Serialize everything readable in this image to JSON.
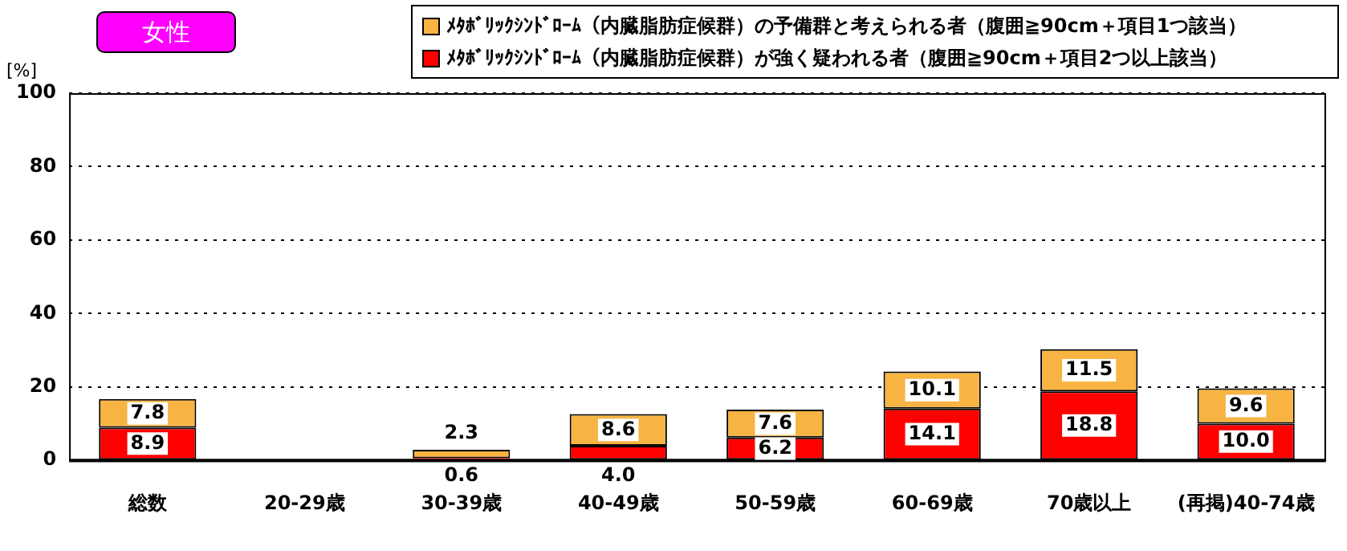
{
  "chart_data": {
    "type": "bar",
    "stacked": true,
    "title": "女性",
    "ylabel": "[%]",
    "categories": [
      "総数",
      "20-29歳",
      "30-39歳",
      "40-49歳",
      "50-59歳",
      "60-69歳",
      "70歳以上",
      "(再掲)40-74歳"
    ],
    "series": [
      {
        "name": "ﾒﾀﾎﾞﾘｯｸｼﾝﾄﾞﾛｰﾑ（内臓脂肪症候群）が強く疑われる者（腹囲≧90cm＋項目2つ以上該当）",
        "color": "#ff0000",
        "values": [
          8.9,
          null,
          0.6,
          4.0,
          6.2,
          14.1,
          18.8,
          10.0
        ],
        "value_labels": [
          "8.9",
          null,
          "0.6",
          "4.0",
          "6.2",
          "14.1",
          "18.8",
          "10.0"
        ]
      },
      {
        "name": "ﾒﾀﾎﾞﾘｯｸｼﾝﾄﾞﾛｰﾑ（内臓脂肪症候群）の予備群と考えられる者（腹囲≧90cm＋項目1つ該当）",
        "color": "#f7b443",
        "values": [
          7.8,
          null,
          2.3,
          8.6,
          7.6,
          10.1,
          11.5,
          9.6
        ],
        "value_labels": [
          "7.8",
          null,
          "2.3",
          "8.6",
          "7.6",
          "10.1",
          "11.5",
          "9.6"
        ]
      }
    ],
    "ylim": [
      0,
      100
    ],
    "yticks": [
      0,
      20,
      40,
      60,
      80,
      100
    ],
    "grid": "y",
    "legend": "top"
  }
}
